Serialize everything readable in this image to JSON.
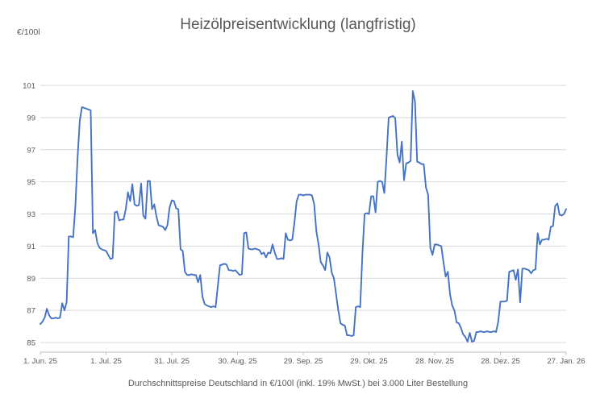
{
  "chart": {
    "title": "Heizölpreisentwicklung (langfristig)",
    "unit_label": "€/100l",
    "footnote": "Durchschnittspreise Deutschland in €/100l (inkl. 19% MwSt.) bei 3.000 Liter Bestellung"
  },
  "chart_data": {
    "type": "line",
    "title": "Heizölpreisentwicklung (langfristig)",
    "xlabel": "",
    "ylabel": "€/100l",
    "ylim": [
      85,
      101
    ],
    "y_ticks": [
      85,
      87,
      89,
      91,
      93,
      95,
      97,
      99,
      101
    ],
    "x_tick_labels": [
      "1. Jun. 25",
      "1. Jul. 25",
      "31. Jul. 25",
      "30. Aug. 25",
      "29. Sep. 25",
      "29. Okt. 25",
      "28. Nov. 25",
      "28. Dez. 25",
      "27. Jan. 26"
    ],
    "x_tick_positions_days": [
      0,
      30,
      60,
      90,
      120,
      150,
      180,
      210,
      240
    ],
    "x_range_days": [
      0,
      240
    ],
    "grid": "horizontal",
    "legend": "none",
    "line_color": "#4472C4",
    "gridline_color": "#D9D9D9",
    "axis_color": "#BFBFBF",
    "text_color": "#595959",
    "series": [
      {
        "name": "Durchschnittspreis Heizöl €/100l",
        "values": [
          86.15,
          86.3,
          86.55,
          87.1,
          86.7,
          86.5,
          86.5,
          86.55,
          86.5,
          86.55,
          87.45,
          87.0,
          87.5,
          91.6,
          91.6,
          91.55,
          93.5,
          96.5,
          98.8,
          99.65,
          99.6,
          99.55,
          99.5,
          99.45,
          91.8,
          92.0,
          91.2,
          90.9,
          90.8,
          90.75,
          90.7,
          90.45,
          90.2,
          90.25,
          93.1,
          93.15,
          92.6,
          92.65,
          92.65,
          93.3,
          94.35,
          93.8,
          94.85,
          93.6,
          93.5,
          93.55,
          94.9,
          92.9,
          92.7,
          95.05,
          95.05,
          93.3,
          93.6,
          92.85,
          92.3,
          92.25,
          92.2,
          92.0,
          92.3,
          93.4,
          93.85,
          93.8,
          93.35,
          93.3,
          90.8,
          90.7,
          89.4,
          89.2,
          89.2,
          89.25,
          89.2,
          89.2,
          88.75,
          89.2,
          87.85,
          87.4,
          87.3,
          87.25,
          87.2,
          87.25,
          87.2,
          88.5,
          89.8,
          89.85,
          89.9,
          89.85,
          89.5,
          89.5,
          89.45,
          89.5,
          89.35,
          89.2,
          89.25,
          91.8,
          91.85,
          90.85,
          90.8,
          90.8,
          90.85,
          90.8,
          90.75,
          90.5,
          90.6,
          90.3,
          90.6,
          90.55,
          91.1,
          90.6,
          90.2,
          90.2,
          90.25,
          90.2,
          91.8,
          91.4,
          91.35,
          91.4,
          92.5,
          93.8,
          94.2,
          94.2,
          94.15,
          94.2,
          94.2,
          94.2,
          94.15,
          93.6,
          91.9,
          91.1,
          90.0,
          89.8,
          89.5,
          90.6,
          90.3,
          89.35,
          89.0,
          88.0,
          87.0,
          86.2,
          86.1,
          86.05,
          85.45,
          85.45,
          85.4,
          85.45,
          87.2,
          87.25,
          87.2,
          90.5,
          93.0,
          93.05,
          93.0,
          94.1,
          94.1,
          93.1,
          95.0,
          95.05,
          95.0,
          94.3,
          96.5,
          99.0,
          99.05,
          99.1,
          98.95,
          96.7,
          96.2,
          97.5,
          95.1,
          96.15,
          96.2,
          96.3,
          100.65,
          100.0,
          96.25,
          96.2,
          96.1,
          96.1,
          94.65,
          94.2,
          90.9,
          90.45,
          91.1,
          91.1,
          91.05,
          91.0,
          90.0,
          89.1,
          89.4,
          88.0,
          87.3,
          87.0,
          86.25,
          86.2,
          85.9,
          85.5,
          85.35,
          85.05,
          85.6,
          85.05,
          85.1,
          85.65,
          85.65,
          85.7,
          85.65,
          85.65,
          85.7,
          85.65,
          85.65,
          85.7,
          85.65,
          86.3,
          87.55,
          87.55,
          87.55,
          87.6,
          89.4,
          89.45,
          89.5,
          88.9,
          89.55,
          87.5,
          89.6,
          89.6,
          89.55,
          89.5,
          89.3,
          89.5,
          89.55,
          91.8,
          91.1,
          91.4,
          91.4,
          91.45,
          91.4,
          92.2,
          92.25,
          93.5,
          93.65,
          92.95,
          92.9,
          93.0,
          93.3
        ]
      }
    ]
  }
}
